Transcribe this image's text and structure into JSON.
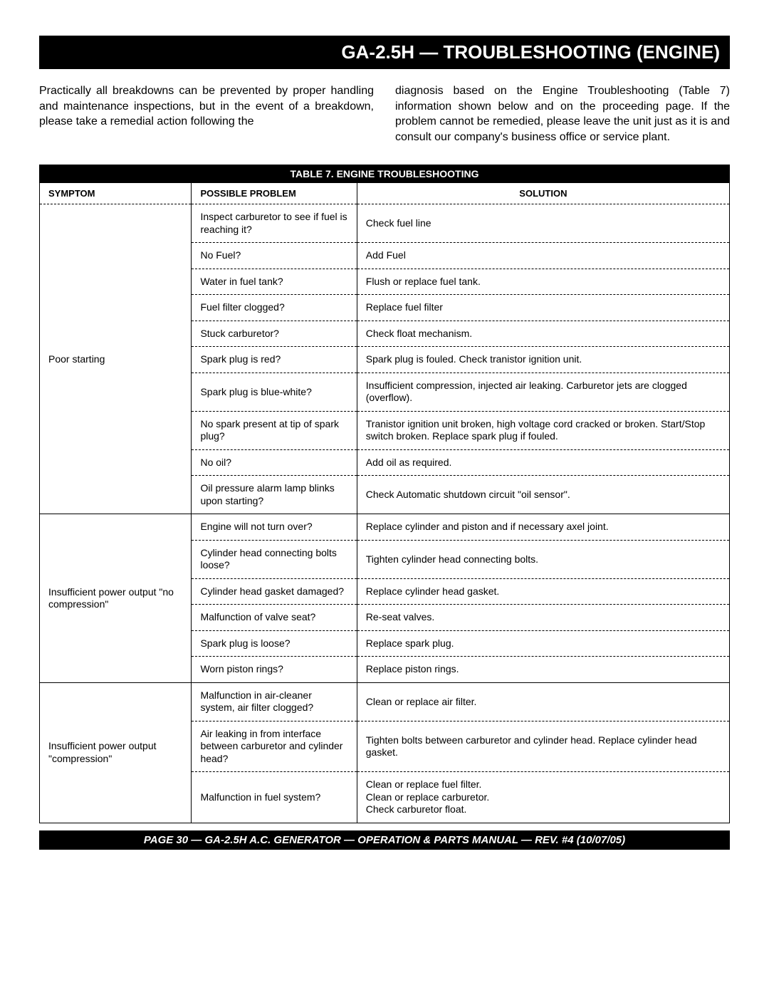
{
  "header": {
    "title": "GA-2.5H — TROUBLESHOOTING (ENGINE)"
  },
  "intro": {
    "left": "Practically all breakdowns can be prevented by proper handling and maintenance inspections, but in the event of a breakdown, please take a remedial action following the",
    "right": "diagnosis based on the Engine Troubleshooting (Table 7) information shown below and on the proceeding page. If the problem cannot be remedied, please leave the unit just as it is and consult our company's business office or service plant."
  },
  "table": {
    "caption": "TABLE 7. ENGINE TROUBLESHOOTING",
    "columns": {
      "symptom": "Symptom",
      "problem": "Possible Problem",
      "solution": "Solution"
    },
    "groups": [
      {
        "symptom": "Poor starting",
        "rows": [
          {
            "problem": "Inspect carburetor to see if fuel is reaching it?",
            "solution": "Check fuel line"
          },
          {
            "problem": "No Fuel?",
            "solution": "Add Fuel"
          },
          {
            "problem": "Water in fuel tank?",
            "solution": "Flush or replace fuel tank."
          },
          {
            "problem": "Fuel filter clogged?",
            "solution": "Replace fuel filter"
          },
          {
            "problem": "Stuck carburetor?",
            "solution": "Check float mechanism."
          },
          {
            "problem": "Spark plug is red?",
            "solution": "Spark plug is fouled. Check tranistor ignition unit."
          },
          {
            "problem": "Spark plug is blue-white?",
            "solution": "Insufficient compression, injected air leaking. Carburetor jets are clogged (overflow)."
          },
          {
            "problem": "No spark present at tip of spark plug?",
            "solution": "Tranistor ignition unit broken, high voltage cord cracked or broken. Start/Stop switch broken. Replace spark plug if fouled."
          },
          {
            "problem": "No oil?",
            "solution": "Add oil as required."
          },
          {
            "problem": "Oil pressure alarm lamp blinks upon starting?",
            "solution": "Check Automatic shutdown circuit \"oil sensor\"."
          }
        ]
      },
      {
        "symptom": "Insufficient power output \"no compression\"",
        "rows": [
          {
            "problem": "Engine will not turn over?",
            "solution": "Replace cylinder and piston and if necessary axel joint."
          },
          {
            "problem": "Cylinder head connecting bolts loose?",
            "solution": "Tighten cylinder head connecting bolts."
          },
          {
            "problem": "Cylinder head gasket damaged?",
            "solution": "Replace cylinder head gasket."
          },
          {
            "problem": "Malfunction of valve seat?",
            "solution": "Re-seat valves."
          },
          {
            "problem": "Spark plug is loose?",
            "solution": "Replace spark plug."
          },
          {
            "problem": "Worn piston rings?",
            "solution": "Replace piston rings."
          }
        ]
      },
      {
        "symptom": "Insufficient power output \"compression\"",
        "rows": [
          {
            "problem": "Malfunction in air-cleaner system, air filter clogged?",
            "solution": "Clean or replace air filter."
          },
          {
            "problem": "Air leaking in from interface between carburetor and cylinder head?",
            "solution": "Tighten bolts between carburetor and cylinder head. Replace cylinder head gasket."
          },
          {
            "problem": "Malfunction in fuel system?",
            "solution_lines": [
              "Clean or replace fuel filter.",
              "Clean or replace carburetor.",
              "Check carburetor float."
            ]
          }
        ]
      }
    ]
  },
  "footer": {
    "text": "PAGE 30 — GA-2.5H A.C. GENERATOR — OPERATION & PARTS  MANUAL — REV. #4  (10/07/05)"
  },
  "style": {
    "page_bg": "#ffffff",
    "bar_bg": "#000000",
    "bar_fg": "#ffffff",
    "body_font_size_pt": 12,
    "title_font_size_pt": 20,
    "table_font_size_pt": 10.5,
    "border_color": "#000000"
  }
}
